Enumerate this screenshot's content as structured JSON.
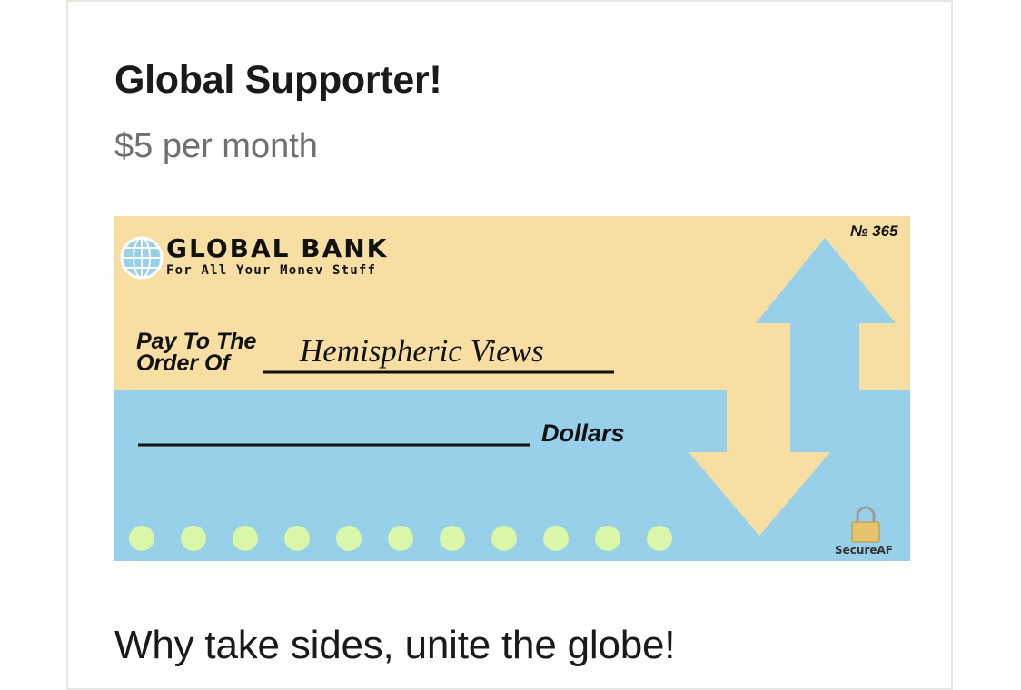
{
  "tier": {
    "title": "Global Supporter!",
    "price": "$5 per month",
    "description": "Why take sides, unite the globe!"
  },
  "check": {
    "bank_name": "GLOBAL BANK",
    "tagline": "For All Your Monev Stuff",
    "check_number": "№ 365",
    "pay_to_line1": "Pay To The",
    "pay_to_line2": "Order Of",
    "payee": "Hemispheric Views",
    "dollars_label": "Dollars",
    "security_label": "SecureAF",
    "dot_count": 11,
    "colors": {
      "top": "#f7dea3",
      "bottom": "#98cfe9",
      "dots": "#d9f7a8",
      "lock": "#e6c26a"
    },
    "icons": [
      "globe-icon",
      "up-arrow-icon",
      "down-arrow-icon",
      "padlock-icon"
    ]
  }
}
